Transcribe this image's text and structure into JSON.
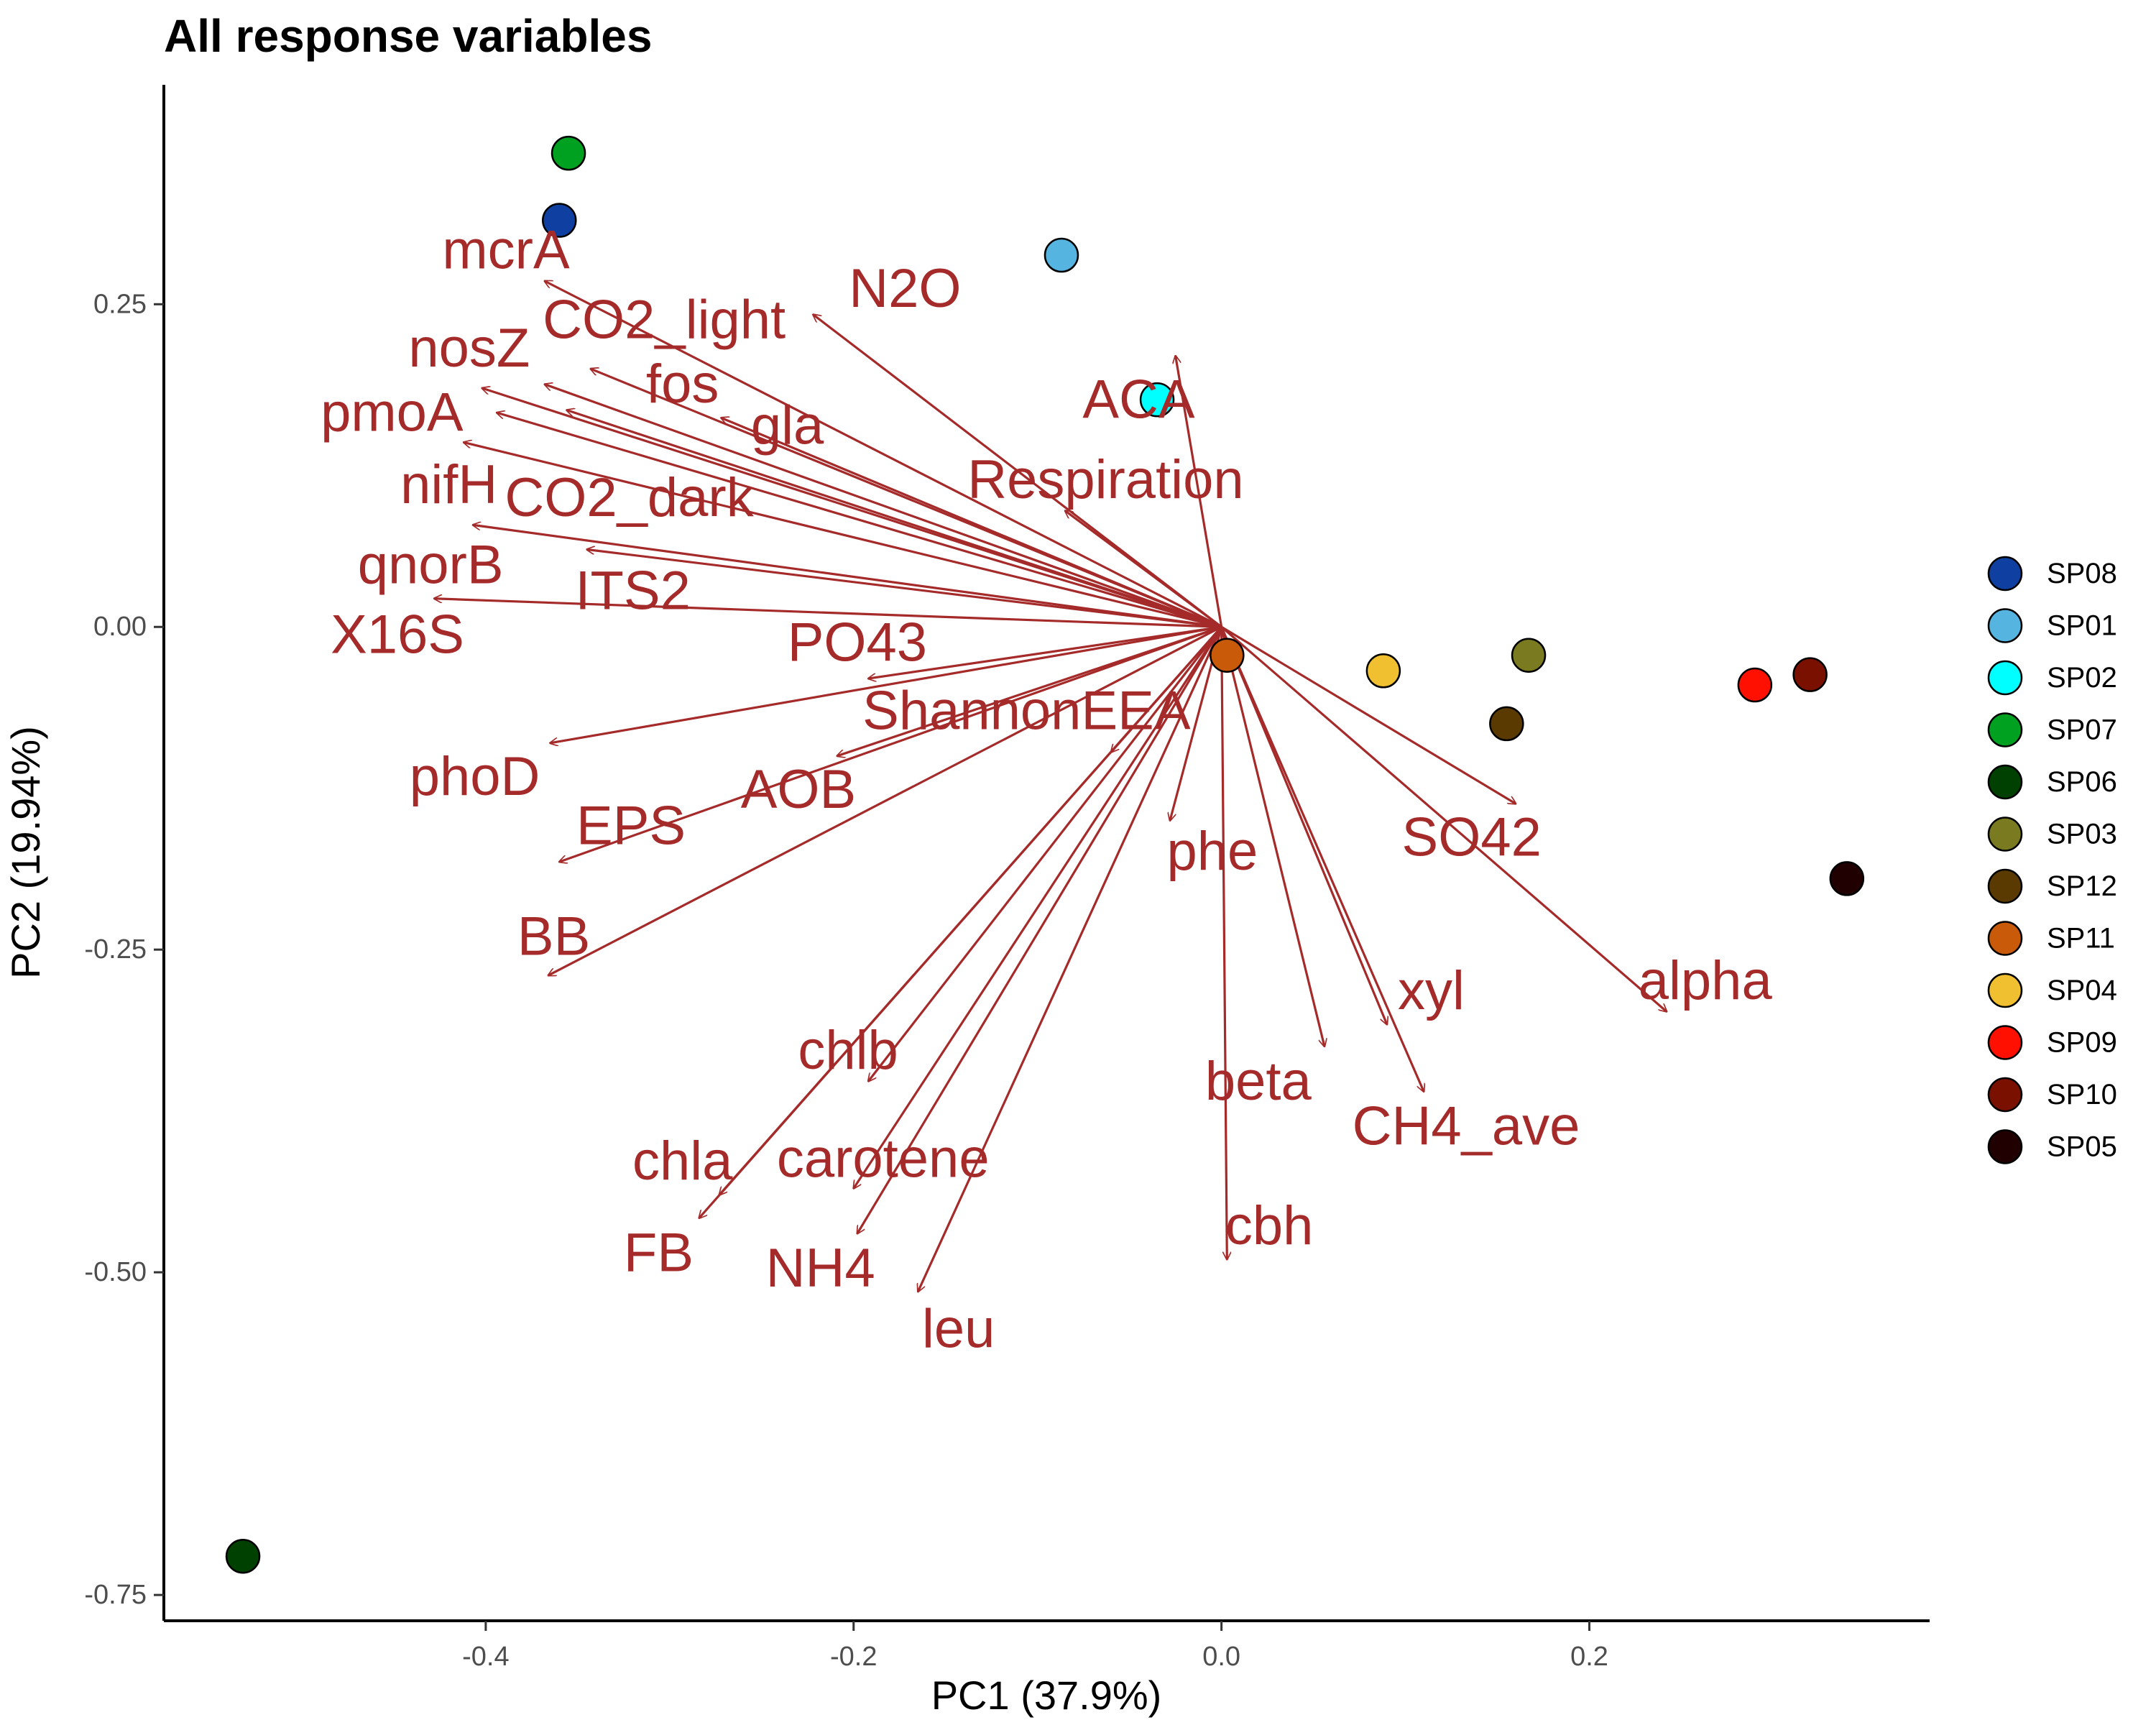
{
  "chart_data": {
    "type": "scatter",
    "subtype": "pca-biplot",
    "title": "All response variables",
    "xlabel": "PC1 (37.9%)",
    "ylabel": "PC2 (19.94%)",
    "xlim": [
      -0.575,
      0.385
    ],
    "ylim": [
      -0.77,
      0.42
    ],
    "xticks": [
      -0.4,
      -0.2,
      0.0,
      0.2
    ],
    "xtick_labels": [
      "-0.4",
      "-0.2",
      "0.0",
      "0.2"
    ],
    "yticks": [
      -0.75,
      -0.5,
      -0.25,
      0.0,
      0.25
    ],
    "ytick_labels": [
      "-0.75",
      "-0.50",
      "-0.25",
      "0.00",
      "0.25"
    ],
    "grid": false,
    "legend_position": "right",
    "arrow_color": "#a52a2a",
    "points": [
      {
        "name": "SP08",
        "x": -0.36,
        "y": 0.315,
        "color": "#0f3fa0"
      },
      {
        "name": "SP01",
        "x": -0.087,
        "y": 0.288,
        "color": "#56b4e0"
      },
      {
        "name": "SP02",
        "x": -0.035,
        "y": 0.176,
        "color": "#00ffff"
      },
      {
        "name": "SP07",
        "x": -0.355,
        "y": 0.367,
        "color": "#00a020"
      },
      {
        "name": "SP06",
        "x": -0.532,
        "y": -0.72,
        "color": "#004000"
      },
      {
        "name": "SP03",
        "x": 0.167,
        "y": -0.022,
        "color": "#7a7a20"
      },
      {
        "name": "SP12",
        "x": 0.155,
        "y": -0.075,
        "color": "#5a3a00"
      },
      {
        "name": "SP11",
        "x": 0.003,
        "y": -0.022,
        "color": "#c85a0a"
      },
      {
        "name": "SP04",
        "x": 0.088,
        "y": -0.034,
        "color": "#f0c030"
      },
      {
        "name": "SP09",
        "x": 0.29,
        "y": -0.045,
        "color": "#ff1000"
      },
      {
        "name": "SP10",
        "x": 0.32,
        "y": -0.037,
        "color": "#7a1000"
      },
      {
        "name": "SP05",
        "x": 0.34,
        "y": -0.195,
        "color": "#200000"
      }
    ],
    "arrows": [
      {
        "name": "mcrA",
        "x": -0.368,
        "y": 0.268,
        "label_x": -0.389,
        "label_y": 0.292
      },
      {
        "name": "CO2_light",
        "x": -0.343,
        "y": 0.2,
        "label_x": -0.303,
        "label_y": 0.238
      },
      {
        "name": "N2O",
        "x": -0.222,
        "y": 0.242,
        "label_x": -0.172,
        "label_y": 0.262
      },
      {
        "name": "nosZ",
        "x": -0.368,
        "y": 0.188,
        "label_x": -0.409,
        "label_y": 0.216
      },
      {
        "name": "fos",
        "x": -0.356,
        "y": 0.168,
        "label_x": -0.293,
        "label_y": 0.188
      },
      {
        "name": "pmoA",
        "x": -0.402,
        "y": 0.185,
        "label_x": -0.451,
        "label_y": 0.166
      },
      {
        "name": "gla",
        "x": -0.272,
        "y": 0.162,
        "label_x": -0.236,
        "label_y": 0.156
      },
      {
        "name": "ACA",
        "x": -0.025,
        "y": 0.21,
        "label_x": -0.045,
        "label_y": 0.176
      },
      {
        "name": "nifH",
        "x": -0.412,
        "y": 0.143,
        "label_x": -0.42,
        "label_y": 0.11
      },
      {
        "name": "CO2_dark",
        "x": -0.394,
        "y": 0.166,
        "label_x": -0.322,
        "label_y": 0.1
      },
      {
        "name": "Respiration",
        "x": -0.085,
        "y": 0.09,
        "label_x": -0.063,
        "label_y": 0.114
      },
      {
        "name": "qnorB",
        "x": -0.407,
        "y": 0.079,
        "label_x": -0.43,
        "label_y": 0.048
      },
      {
        "name": "ITS2",
        "x": -0.345,
        "y": 0.06,
        "label_x": -0.32,
        "label_y": 0.028
      },
      {
        "name": "X16S",
        "x": -0.428,
        "y": 0.022,
        "label_x": -0.448,
        "label_y": -0.006
      },
      {
        "name": "PO43",
        "x": -0.192,
        "y": -0.04,
        "label_x": -0.198,
        "label_y": -0.012
      },
      {
        "name": "ShannonEEA",
        "x": -0.06,
        "y": -0.097,
        "label_x": -0.106,
        "label_y": -0.065
      },
      {
        "name": "phoD",
        "x": -0.365,
        "y": -0.09,
        "label_x": -0.406,
        "label_y": -0.116
      },
      {
        "name": "AOB",
        "x": -0.209,
        "y": -0.1,
        "label_x": -0.23,
        "label_y": -0.126
      },
      {
        "name": "EPS",
        "x": -0.36,
        "y": -0.182,
        "label_x": -0.321,
        "label_y": -0.154
      },
      {
        "name": "phe",
        "x": -0.028,
        "y": -0.15,
        "label_x": -0.005,
        "label_y": -0.174
      },
      {
        "name": "SO42",
        "x": 0.16,
        "y": -0.137,
        "label_x": 0.136,
        "label_y": -0.163
      },
      {
        "name": "BB",
        "x": -0.366,
        "y": -0.27,
        "label_x": -0.363,
        "label_y": -0.24
      },
      {
        "name": "alpha",
        "x": 0.242,
        "y": -0.298,
        "label_x": 0.263,
        "label_y": -0.274
      },
      {
        "name": "xyl",
        "x": 0.09,
        "y": -0.308,
        "label_x": 0.114,
        "label_y": -0.282
      },
      {
        "name": "chlb",
        "x": -0.192,
        "y": -0.352,
        "label_x": -0.203,
        "label_y": -0.328
      },
      {
        "name": "beta",
        "x": 0.056,
        "y": -0.325,
        "label_x": 0.02,
        "label_y": -0.352
      },
      {
        "name": "CH4_ave",
        "x": 0.11,
        "y": -0.36,
        "label_x": 0.133,
        "label_y": -0.387
      },
      {
        "name": "chla",
        "x": -0.273,
        "y": -0.44,
        "label_x": -0.293,
        "label_y": -0.414
      },
      {
        "name": "carotene",
        "x": -0.2,
        "y": -0.435,
        "label_x": -0.184,
        "label_y": -0.412
      },
      {
        "name": "FB",
        "x": -0.284,
        "y": -0.458,
        "label_x": -0.306,
        "label_y": -0.485
      },
      {
        "name": "NH4",
        "x": -0.198,
        "y": -0.47,
        "label_x": -0.218,
        "label_y": -0.497
      },
      {
        "name": "cbh",
        "x": 0.003,
        "y": -0.49,
        "label_x": 0.026,
        "label_y": -0.464
      },
      {
        "name": "leu",
        "x": -0.165,
        "y": -0.515,
        "label_x": -0.143,
        "label_y": -0.544
      }
    ]
  }
}
